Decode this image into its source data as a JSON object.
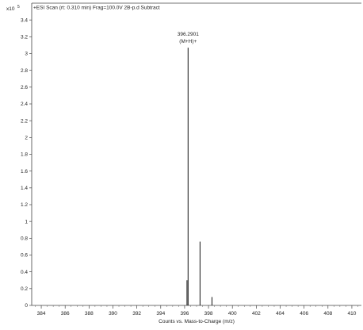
{
  "chart_data": {
    "type": "bar",
    "title": "+ESI Scan (rt: 0.310 min) Frag=100.0V 2B-p.d  Subtract",
    "y_multiplier": {
      "base": "x10",
      "exponent": "5"
    },
    "xlabel": "Counts vs. Mass-to-Charge (m/z)",
    "ylabel": "",
    "xlim": [
      383.2,
      410.8
    ],
    "ylim": [
      0,
      3.6
    ],
    "x_ticks": [
      384,
      386,
      388,
      390,
      392,
      394,
      396,
      398,
      400,
      402,
      404,
      406,
      408,
      410
    ],
    "y_ticks": [
      0,
      0.2,
      0.4,
      0.6,
      0.8,
      1,
      1.2,
      1.4,
      1.6,
      1.8,
      2,
      2.2,
      2.4,
      2.6,
      2.8,
      3,
      3.2,
      3.4
    ],
    "y_tick_labels": [
      "0",
      "0.2",
      "0.4",
      "0.6",
      "0.8",
      "1",
      "1.2",
      "1.4",
      "1.6",
      "1.8",
      "2",
      "2.2",
      "2.4",
      "2.6",
      "2.8",
      "3",
      "3.2",
      "3.4"
    ],
    "grid": false,
    "series": [
      {
        "x": [
          396.2,
          396.29,
          397.29,
          398.29
        ],
        "y": [
          0.3,
          3.07,
          0.76,
          0.1
        ]
      }
    ],
    "annotations": [
      {
        "x": 396.29,
        "lines": [
          "396.2901",
          "(M+H)+"
        ]
      }
    ]
  }
}
